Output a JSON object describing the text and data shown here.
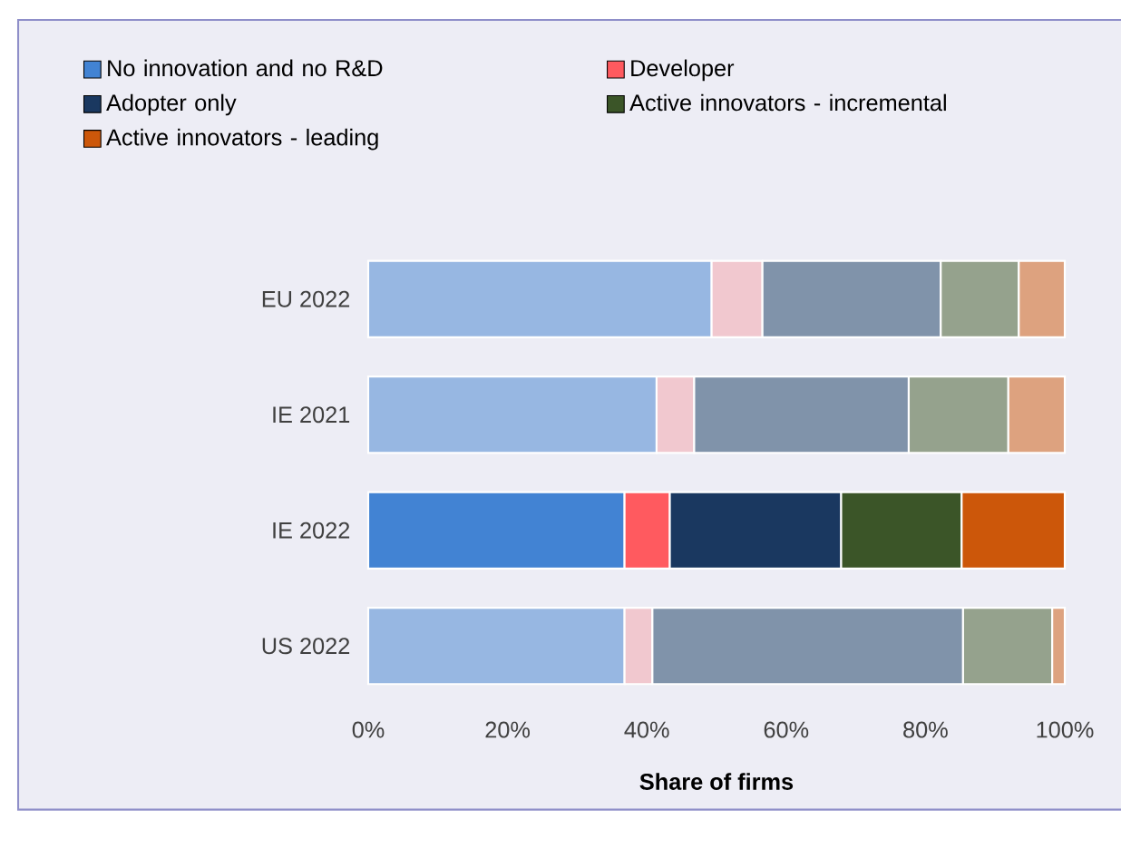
{
  "chart_data": {
    "type": "bar",
    "orientation": "horizontal",
    "stacked": true,
    "categories": [
      "EU 2022",
      "IE 2021",
      "IE 2022",
      "US 2022"
    ],
    "series": [
      {
        "name": "No innovation and no R&D",
        "color": "#4283d3",
        "colors": [
          "#97b7e2",
          "#97b7e2",
          "#4283d3",
          "#97b7e2"
        ],
        "values": [
          49.3,
          41.4,
          36.8,
          36.8
        ]
      },
      {
        "name": "Developer",
        "color": "#ff5a5f",
        "colors": [
          "#f1c8cf",
          "#f1c8cf",
          "#ff5a5f",
          "#f1c8cf"
        ],
        "values": [
          7.3,
          5.4,
          6.5,
          4.0
        ]
      },
      {
        "name": "Adopter only",
        "color": "#1a3860",
        "colors": [
          "#8093aa",
          "#8093aa",
          "#1a3860",
          "#8093aa"
        ],
        "values": [
          25.6,
          30.8,
          24.6,
          44.6
        ]
      },
      {
        "name": "Active innovators - incremental",
        "color": "#3b5528",
        "colors": [
          "#95a28d",
          "#95a28d",
          "#3b5528",
          "#95a28d"
        ],
        "values": [
          11.2,
          14.3,
          17.3,
          12.8
        ]
      },
      {
        "name": "Active innovators - leading",
        "color": "#cc570a",
        "colors": [
          "#dda27f",
          "#dda27f",
          "#cc570a",
          "#dda27f"
        ],
        "values": [
          6.6,
          8.1,
          14.8,
          1.8
        ]
      }
    ],
    "xlim": [
      0,
      100
    ],
    "xticks": [
      {
        "value": 0,
        "label": "0%"
      },
      {
        "value": 20,
        "label": "20%"
      },
      {
        "value": 40,
        "label": "40%"
      },
      {
        "value": 60,
        "label": "60%"
      },
      {
        "value": 80,
        "label": "80%"
      },
      {
        "value": 100,
        "label": "100%"
      }
    ],
    "xlabel": "Share of firms",
    "legend": "top"
  }
}
